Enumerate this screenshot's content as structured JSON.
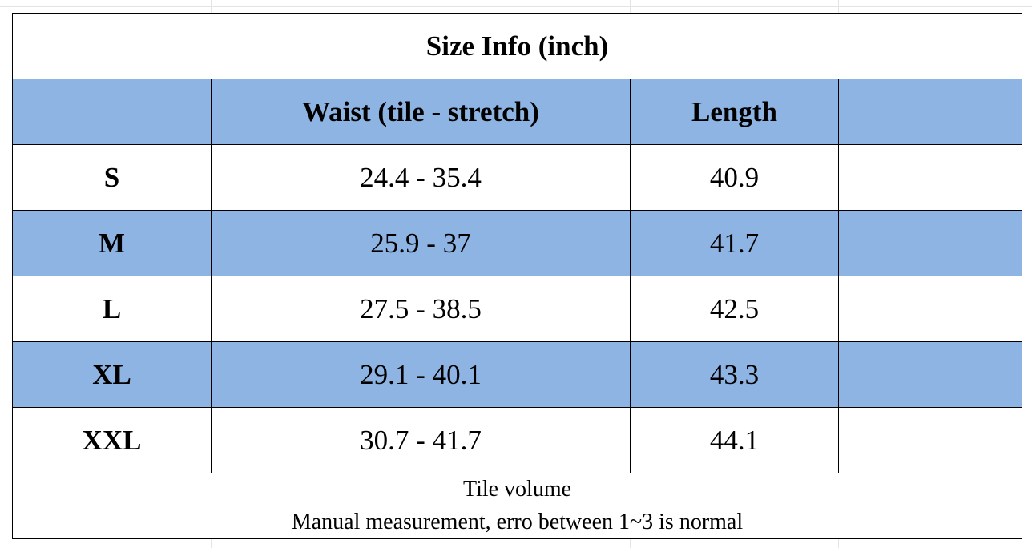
{
  "table": {
    "title": "Size Info (inch)",
    "headers": [
      "",
      "Waist (tile - stretch)",
      "Length",
      ""
    ],
    "rows": [
      {
        "size": "S",
        "waist": "24.4 - 35.4",
        "length": "40.9"
      },
      {
        "size": "M",
        "waist": "25.9 - 37",
        "length": "41.7"
      },
      {
        "size": "L",
        "waist": "27.5 - 38.5",
        "length": "42.5"
      },
      {
        "size": "XL",
        "waist": "29.1 - 40.1",
        "length": "43.3"
      },
      {
        "size": "XXL",
        "waist": "30.7 - 41.7",
        "length": "44.1"
      }
    ],
    "notes": [
      "Tile volume",
      "Manual measurement, erro between 1~3 is normal"
    ]
  },
  "colors": {
    "header_fill": "#8eb4e3",
    "border": "#000000",
    "background": "#ffffff"
  }
}
